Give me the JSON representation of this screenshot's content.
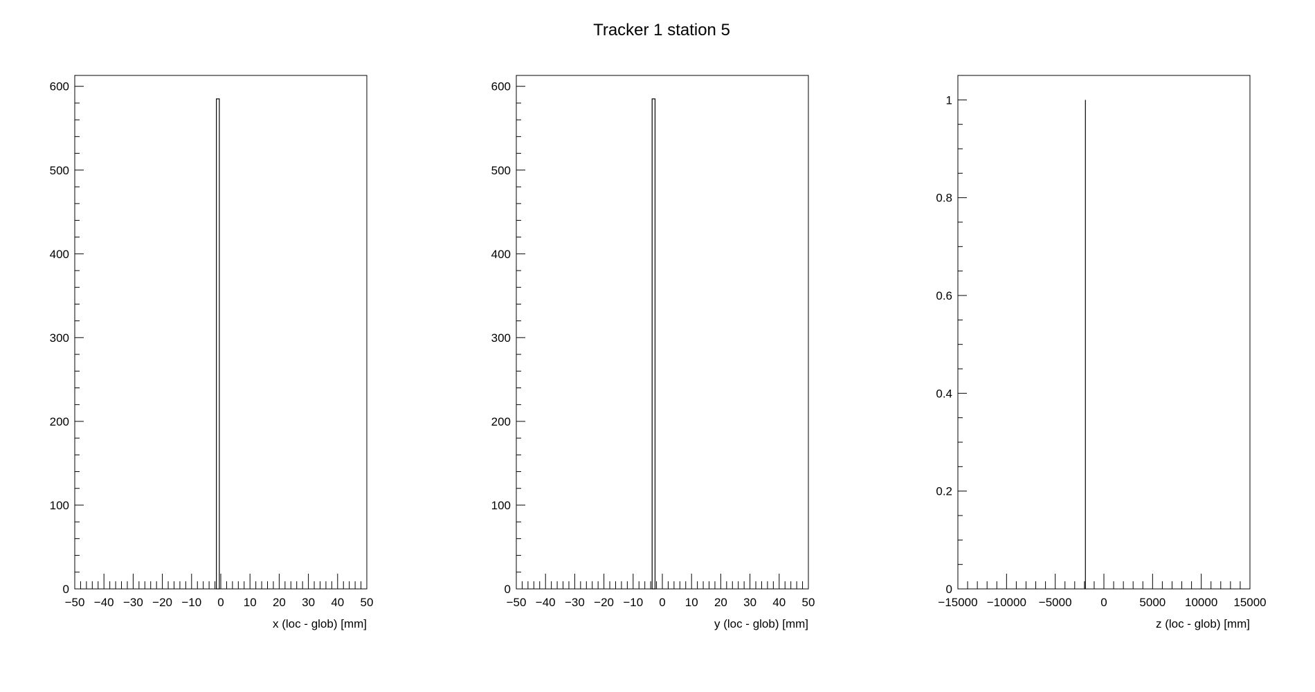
{
  "title": "Tracker 1 station 5",
  "chart_data": [
    {
      "type": "histogram",
      "xlabel": "x (loc - glob) [mm]",
      "ylabel": "",
      "xlim": [
        -50,
        50
      ],
      "ylim": [
        0,
        613
      ],
      "x_major_ticks": [
        -50,
        -40,
        -30,
        -20,
        -10,
        0,
        10,
        20,
        30,
        40,
        50
      ],
      "x_tick_labels": [
        "−50",
        "−40",
        "−30",
        "−20",
        "−10",
        "0",
        "10",
        "20",
        "30",
        "40",
        "50"
      ],
      "x_minor_step": 2,
      "y_major_ticks": [
        0,
        100,
        200,
        300,
        400,
        500,
        600
      ],
      "y_tick_labels": [
        "0",
        "100",
        "200",
        "300",
        "400",
        "500",
        "600"
      ],
      "y_minor_step": 20,
      "bins": [
        {
          "x0": -1.5,
          "x1": -0.5,
          "count": 585
        }
      ],
      "grid": false
    },
    {
      "type": "histogram",
      "xlabel": "y (loc - glob) [mm]",
      "ylabel": "",
      "xlim": [
        -50,
        50
      ],
      "ylim": [
        0,
        613
      ],
      "x_major_ticks": [
        -50,
        -40,
        -30,
        -20,
        -10,
        0,
        10,
        20,
        30,
        40,
        50
      ],
      "x_tick_labels": [
        "−50",
        "−40",
        "−30",
        "−20",
        "−10",
        "0",
        "10",
        "20",
        "30",
        "40",
        "50"
      ],
      "x_minor_step": 2,
      "y_major_ticks": [
        0,
        100,
        200,
        300,
        400,
        500,
        600
      ],
      "y_tick_labels": [
        "0",
        "100",
        "200",
        "300",
        "400",
        "500",
        "600"
      ],
      "y_minor_step": 20,
      "bins": [
        {
          "x0": -3.5,
          "x1": -2.5,
          "count": 585
        }
      ],
      "grid": false
    },
    {
      "type": "histogram",
      "xlabel": "z (loc - glob) [mm]",
      "ylabel": "",
      "xlim": [
        -15000,
        15000
      ],
      "ylim": [
        0,
        1.05
      ],
      "x_major_ticks": [
        -15000,
        -10000,
        -5000,
        0,
        5000,
        10000,
        15000
      ],
      "x_tick_labels": [
        "−15000",
        "−10000",
        "−5000",
        "0",
        "5000",
        "10000",
        "15000"
      ],
      "x_minor_step": 1000,
      "y_major_ticks": [
        0,
        0.2,
        0.4,
        0.6,
        0.8,
        1
      ],
      "y_tick_labels": [
        "0",
        "0.2",
        "0.4",
        "0.6",
        "0.8",
        "1"
      ],
      "y_minor_step": 0.05,
      "bins": [
        {
          "x0": -1900,
          "x1": -1900,
          "count": 1
        }
      ],
      "grid": false
    }
  ]
}
